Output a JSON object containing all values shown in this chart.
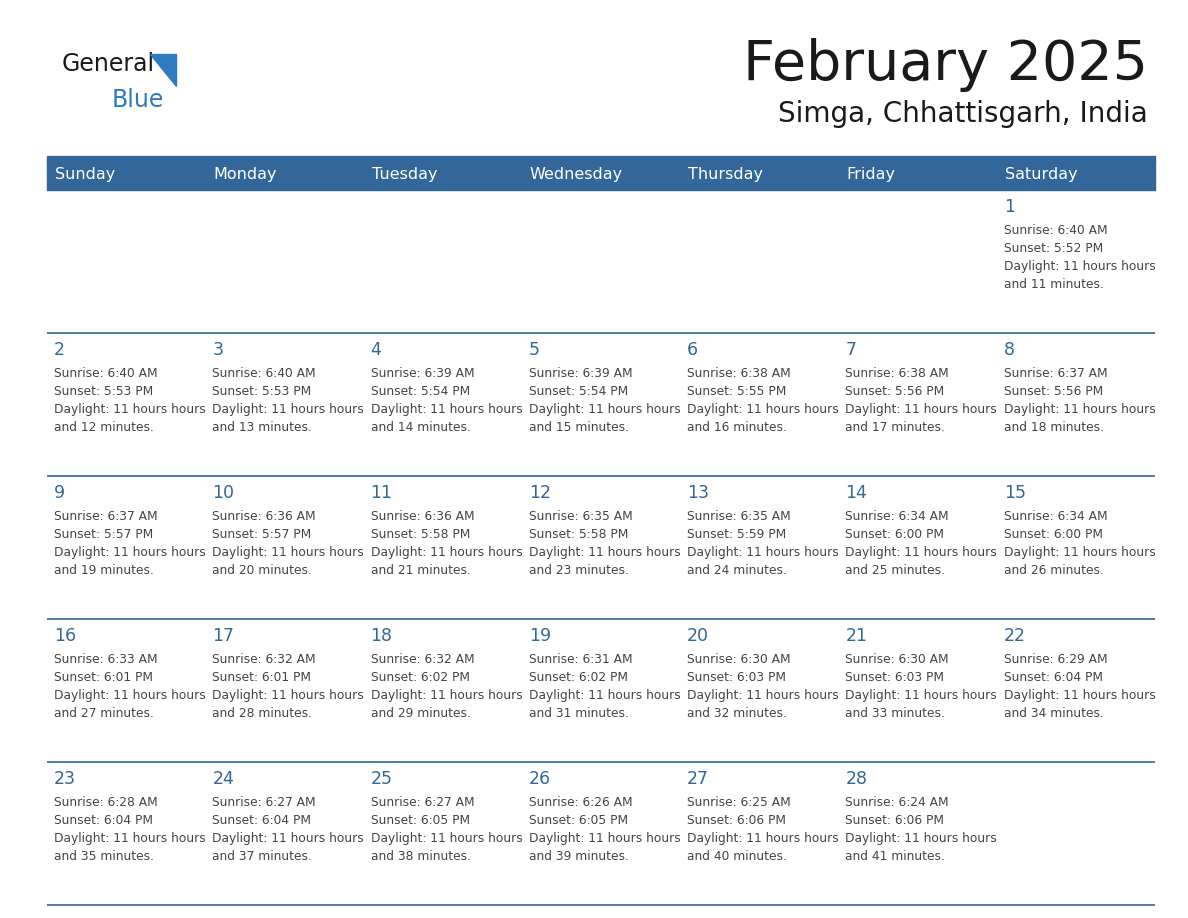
{
  "title": "February 2025",
  "subtitle": "Simga, Chhattisgarh, India",
  "days_of_week": [
    "Sunday",
    "Monday",
    "Tuesday",
    "Wednesday",
    "Thursday",
    "Friday",
    "Saturday"
  ],
  "header_bg": "#336699",
  "header_text": "#ffffff",
  "cell_bg_white": "#ffffff",
  "cell_bg_gray": "#f2f2f2",
  "border_color": "#336699",
  "day_number_color": "#336699",
  "text_color": "#444444",
  "title_color": "#1a1a1a",
  "logo_general_color": "#1a1a1a",
  "logo_blue_color": "#2e7bbf",
  "logo_triangle_color": "#2e7bbf",
  "calendar_data": [
    [
      null,
      null,
      null,
      null,
      null,
      null,
      {
        "day": 1,
        "sunrise": "6:40 AM",
        "sunset": "5:52 PM",
        "daylight": "11 hours and 11 minutes."
      }
    ],
    [
      {
        "day": 2,
        "sunrise": "6:40 AM",
        "sunset": "5:53 PM",
        "daylight": "11 hours and 12 minutes."
      },
      {
        "day": 3,
        "sunrise": "6:40 AM",
        "sunset": "5:53 PM",
        "daylight": "11 hours and 13 minutes."
      },
      {
        "day": 4,
        "sunrise": "6:39 AM",
        "sunset": "5:54 PM",
        "daylight": "11 hours and 14 minutes."
      },
      {
        "day": 5,
        "sunrise": "6:39 AM",
        "sunset": "5:54 PM",
        "daylight": "11 hours and 15 minutes."
      },
      {
        "day": 6,
        "sunrise": "6:38 AM",
        "sunset": "5:55 PM",
        "daylight": "11 hours and 16 minutes."
      },
      {
        "day": 7,
        "sunrise": "6:38 AM",
        "sunset": "5:56 PM",
        "daylight": "11 hours and 17 minutes."
      },
      {
        "day": 8,
        "sunrise": "6:37 AM",
        "sunset": "5:56 PM",
        "daylight": "11 hours and 18 minutes."
      }
    ],
    [
      {
        "day": 9,
        "sunrise": "6:37 AM",
        "sunset": "5:57 PM",
        "daylight": "11 hours and 19 minutes."
      },
      {
        "day": 10,
        "sunrise": "6:36 AM",
        "sunset": "5:57 PM",
        "daylight": "11 hours and 20 minutes."
      },
      {
        "day": 11,
        "sunrise": "6:36 AM",
        "sunset": "5:58 PM",
        "daylight": "11 hours and 21 minutes."
      },
      {
        "day": 12,
        "sunrise": "6:35 AM",
        "sunset": "5:58 PM",
        "daylight": "11 hours and 23 minutes."
      },
      {
        "day": 13,
        "sunrise": "6:35 AM",
        "sunset": "5:59 PM",
        "daylight": "11 hours and 24 minutes."
      },
      {
        "day": 14,
        "sunrise": "6:34 AM",
        "sunset": "6:00 PM",
        "daylight": "11 hours and 25 minutes."
      },
      {
        "day": 15,
        "sunrise": "6:34 AM",
        "sunset": "6:00 PM",
        "daylight": "11 hours and 26 minutes."
      }
    ],
    [
      {
        "day": 16,
        "sunrise": "6:33 AM",
        "sunset": "6:01 PM",
        "daylight": "11 hours and 27 minutes."
      },
      {
        "day": 17,
        "sunrise": "6:32 AM",
        "sunset": "6:01 PM",
        "daylight": "11 hours and 28 minutes."
      },
      {
        "day": 18,
        "sunrise": "6:32 AM",
        "sunset": "6:02 PM",
        "daylight": "11 hours and 29 minutes."
      },
      {
        "day": 19,
        "sunrise": "6:31 AM",
        "sunset": "6:02 PM",
        "daylight": "11 hours and 31 minutes."
      },
      {
        "day": 20,
        "sunrise": "6:30 AM",
        "sunset": "6:03 PM",
        "daylight": "11 hours and 32 minutes."
      },
      {
        "day": 21,
        "sunrise": "6:30 AM",
        "sunset": "6:03 PM",
        "daylight": "11 hours and 33 minutes."
      },
      {
        "day": 22,
        "sunrise": "6:29 AM",
        "sunset": "6:04 PM",
        "daylight": "11 hours and 34 minutes."
      }
    ],
    [
      {
        "day": 23,
        "sunrise": "6:28 AM",
        "sunset": "6:04 PM",
        "daylight": "11 hours and 35 minutes."
      },
      {
        "day": 24,
        "sunrise": "6:27 AM",
        "sunset": "6:04 PM",
        "daylight": "11 hours and 37 minutes."
      },
      {
        "day": 25,
        "sunrise": "6:27 AM",
        "sunset": "6:05 PM",
        "daylight": "11 hours and 38 minutes."
      },
      {
        "day": 26,
        "sunrise": "6:26 AM",
        "sunset": "6:05 PM",
        "daylight": "11 hours and 39 minutes."
      },
      {
        "day": 27,
        "sunrise": "6:25 AM",
        "sunset": "6:06 PM",
        "daylight": "11 hours and 40 minutes."
      },
      {
        "day": 28,
        "sunrise": "6:24 AM",
        "sunset": "6:06 PM",
        "daylight": "11 hours and 41 minutes."
      },
      null
    ]
  ]
}
